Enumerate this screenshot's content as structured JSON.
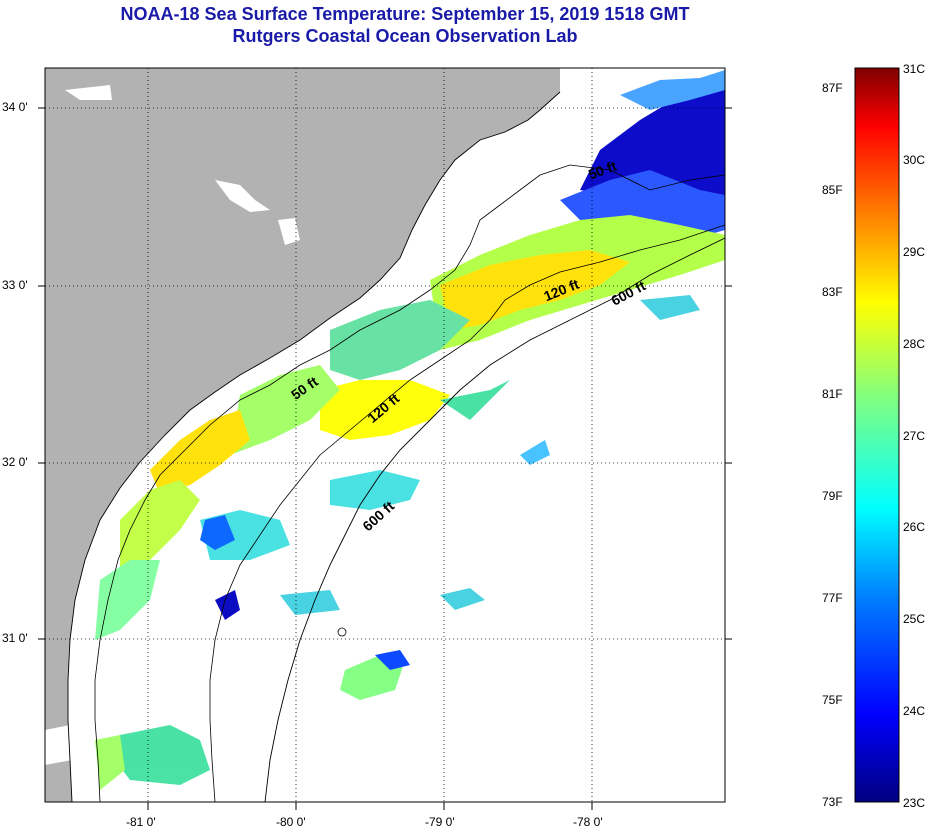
{
  "title": {
    "line1": "NOAA-18 Sea Surface Temperature:  September 15, 2019 1518 GMT",
    "line2": "Rutgers Coastal Ocean Observation Lab"
  },
  "map": {
    "latitude_labels": [
      "34 0'",
      "33 0'",
      "32 0'",
      "31 0'"
    ],
    "longitude_labels": [
      "-81 0'",
      "-80 0'",
      "-79 0'",
      "-78 0'"
    ],
    "contour_labels": [
      "50 ft",
      "120 ft",
      "600 ft",
      "50 ft",
      "120 ft",
      "600 ft"
    ],
    "colors": {
      "land": "#b2b2b2",
      "no_data": "#ffffff"
    }
  },
  "colorbar": {
    "celsius_labels": [
      "31C",
      "30C",
      "29C",
      "28C",
      "27C",
      "26C",
      "25C",
      "24C",
      "23C"
    ],
    "fahrenheit_labels": [
      "87F",
      "85F",
      "83F",
      "81F",
      "79F",
      "77F",
      "75F",
      "73F"
    ],
    "colors": [
      "#00007f",
      "#0000ff",
      "#0080ff",
      "#00ffff",
      "#80ff80",
      "#ffff00",
      "#ff8000",
      "#ff0000",
      "#7f0000"
    ]
  }
}
